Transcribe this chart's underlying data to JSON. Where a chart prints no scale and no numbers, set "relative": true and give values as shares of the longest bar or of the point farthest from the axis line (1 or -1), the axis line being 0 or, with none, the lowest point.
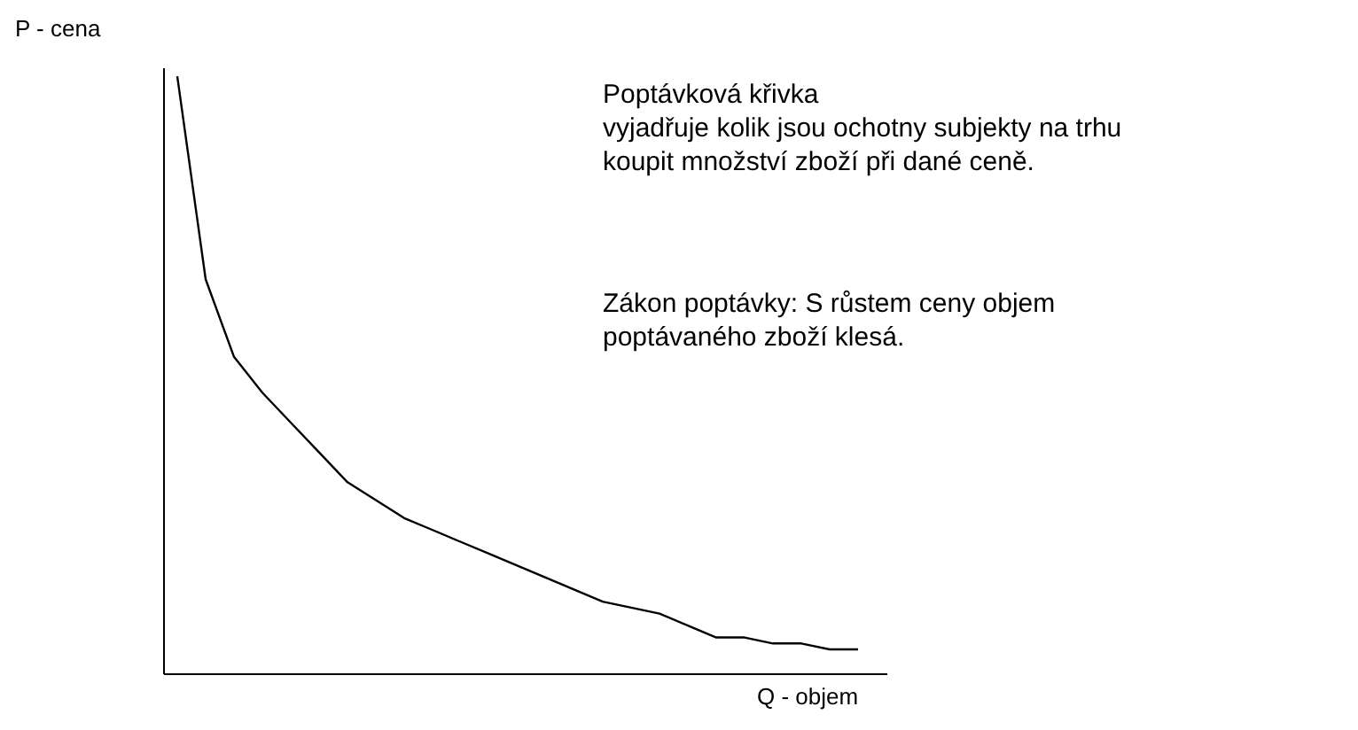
{
  "chart_data": {
    "type": "line",
    "relative": true,
    "xlabel": "Q - objem",
    "ylabel": "P - cena",
    "categories": [
      null,
      null,
      null,
      null,
      null,
      null,
      null,
      null,
      null,
      null,
      null,
      null,
      null,
      null,
      null,
      null,
      null,
      null,
      null,
      null,
      null,
      null,
      null,
      null,
      null
    ],
    "series": [
      {
        "color": "#000000",
        "values": [
          1.0,
          0.66,
          0.53,
          0.47,
          0.42,
          0.37,
          0.32,
          0.29,
          0.26,
          0.24,
          0.22,
          0.2,
          0.18,
          0.16,
          0.14,
          0.12,
          0.11,
          0.1,
          0.08,
          0.06,
          0.06,
          0.05,
          0.05,
          0.04,
          0.04
        ]
      }
    ],
    "annotations": [
      "Poptávková křivka\n vyjadřuje kolik jsou ochotny subjekty na trhu\nkoupit množství zboží při dané ceně.",
      "Zákon poptávky: S růstem ceny objem\npoptávaného zboží klesá."
    ],
    "grid": false
  }
}
